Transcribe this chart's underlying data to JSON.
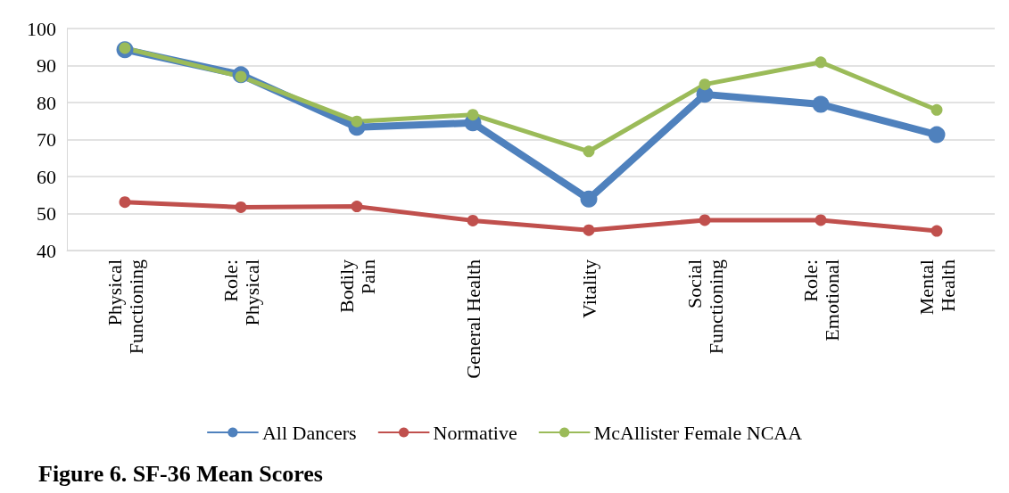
{
  "chart_data": {
    "type": "line",
    "title": "Figure 6. SF-36 Mean Scores",
    "categories": [
      "Physical\nFunctioning",
      "Role:\nPhysical",
      "Bodily\nPain",
      "General Health",
      "Vitality",
      "Social\nFunctioning",
      "Role:\nEmotional",
      "Mental\nHealth"
    ],
    "series": [
      {
        "name": "All Dancers",
        "color": "#4f81bd",
        "values": [
          94.3,
          87.5,
          73.3,
          74.5,
          53.9,
          82.2,
          79.5,
          71.3
        ]
      },
      {
        "name": "Normative",
        "color": "#c0504d",
        "values": [
          53.1,
          51.7,
          51.9,
          48.1,
          45.5,
          48.2,
          48.2,
          45.3
        ]
      },
      {
        "name": "McAllister Female NCAA",
        "color": "#9bbb59",
        "values": [
          94.7,
          87,
          74.9,
          76.7,
          66.8,
          84.9,
          90.9,
          78
        ]
      }
    ],
    "ylim": [
      40,
      100
    ],
    "yticks": [
      40,
      50,
      60,
      70,
      80,
      90,
      100
    ],
    "grid": "y",
    "legend": "bottom",
    "marker": "circle",
    "line_style": "solid"
  }
}
